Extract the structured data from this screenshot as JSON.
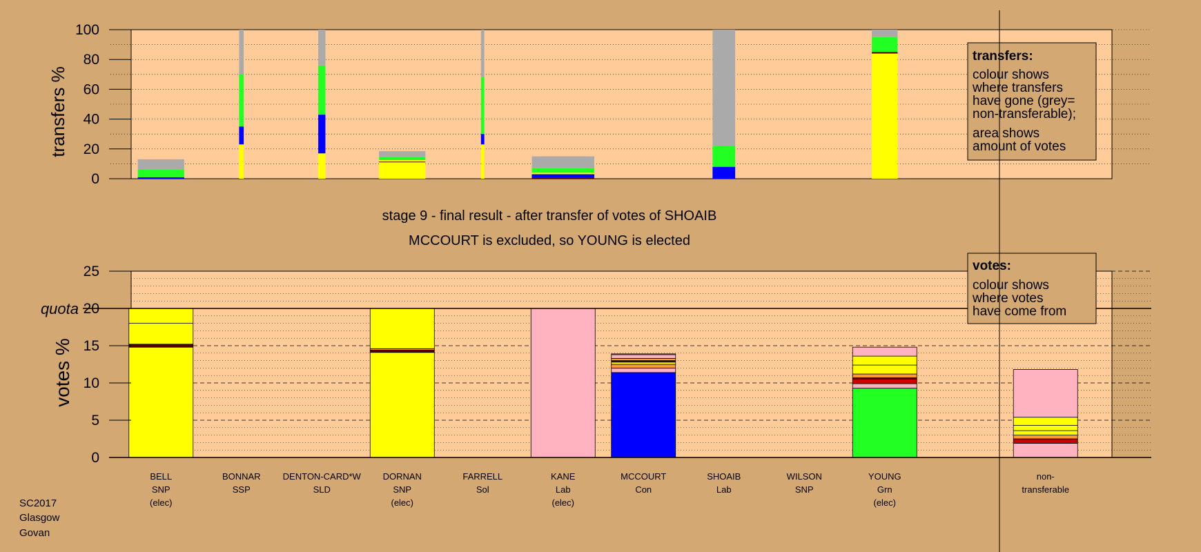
{
  "colors": {
    "background": "#D4A872",
    "plot_panel": "#FFCC99",
    "yellow": "#FFFF00",
    "green": "#22FF22",
    "blue": "#0000FF",
    "grey": "#AAAAAA",
    "pink": "#FFB3C1",
    "red": "#CC0000",
    "orange": "#FF9933",
    "dark": "#550000"
  },
  "transfers_legend": {
    "title": "transfers:",
    "lines_a": [
      "colour shows",
      "where transfers",
      "have gone (grey=",
      "non-transferable);"
    ],
    "lines_b": [
      "area shows",
      "amount of votes"
    ]
  },
  "votes_legend": {
    "title": "votes:",
    "lines": [
      "colour shows",
      "where votes",
      "have come from"
    ]
  },
  "stage_title": "stage 9 - final result - after transfer of votes of SHOAIB",
  "stage_subtitle": "MCCOURT is excluded, so YOUNG is elected",
  "quota_label": "quota",
  "footer": [
    "SC2017",
    "Glasgow",
    "Govan"
  ],
  "chart_data": [
    {
      "type": "bar",
      "title": "",
      "ylabel": "transfers %",
      "ylim": [
        0,
        100
      ],
      "yticks": [
        0,
        20,
        40,
        60,
        80,
        100
      ],
      "grid": "dotted",
      "bars": [
        {
          "candidate": "BELL",
          "width": 0.7,
          "segments": [
            {
              "color": "blue",
              "value": 1
            },
            {
              "color": "green",
              "value": 5
            },
            {
              "color": "grey",
              "value": 7
            }
          ]
        },
        {
          "candidate": "BONNAR",
          "width": 0.05,
          "segments": [
            {
              "color": "yellow",
              "value": 23
            },
            {
              "color": "blue",
              "value": 12
            },
            {
              "color": "green",
              "value": 35
            },
            {
              "color": "grey",
              "value": 30
            }
          ]
        },
        {
          "candidate": "DENTON-CARD*W",
          "width": 0.09,
          "segments": [
            {
              "color": "yellow",
              "value": 17
            },
            {
              "color": "blue",
              "value": 26
            },
            {
              "color": "green",
              "value": 33
            },
            {
              "color": "grey",
              "value": 24
            }
          ]
        },
        {
          "candidate": "DORNAN",
          "width": 0.7,
          "segments": [
            {
              "color": "yellow",
              "value": 11
            },
            {
              "color": "dark",
              "value": 0.5
            },
            {
              "color": "yellow",
              "value": 1
            },
            {
              "color": "green",
              "value": 2
            },
            {
              "color": "grey",
              "value": 4
            }
          ]
        },
        {
          "candidate": "FARRELL",
          "width": 0.03,
          "segments": [
            {
              "color": "yellow",
              "value": 23
            },
            {
              "color": "blue",
              "value": 7
            },
            {
              "color": "green",
              "value": 38
            },
            {
              "color": "grey",
              "value": 32
            }
          ]
        },
        {
          "candidate": "KANE",
          "width": 0.95,
          "segments": [
            {
              "color": "dark",
              "value": 0.5
            },
            {
              "color": "blue",
              "value": 2.5
            },
            {
              "color": "yellow",
              "value": 1
            },
            {
              "color": "green",
              "value": 3
            },
            {
              "color": "grey",
              "value": 8
            }
          ]
        },
        {
          "candidate": "SHOAIB",
          "width": 0.33,
          "segments": [
            {
              "color": "blue",
              "value": 8
            },
            {
              "color": "green",
              "value": 14
            },
            {
              "color": "grey",
              "value": 78
            }
          ]
        },
        {
          "candidate": "YOUNG",
          "width": 0.38,
          "segments": [
            {
              "color": "yellow",
              "value": 84
            },
            {
              "color": "dark",
              "value": 1
            },
            {
              "color": "green",
              "value": 10
            },
            {
              "color": "grey",
              "value": 5
            }
          ]
        }
      ]
    },
    {
      "type": "bar",
      "title": "",
      "ylabel": "votes %",
      "ylim": [
        0,
        25
      ],
      "yticks": [
        0,
        5,
        10,
        15,
        20,
        25
      ],
      "quota": 20,
      "grid": "dashed",
      "categories": [
        {
          "name": "BELL",
          "party": "SNP",
          "note": "(elec)"
        },
        {
          "name": "BONNAR",
          "party": "SSP",
          "note": ""
        },
        {
          "name": "DENTON-CARD*W",
          "party": "SLD",
          "note": ""
        },
        {
          "name": "DORNAN",
          "party": "SNP",
          "note": "(elec)"
        },
        {
          "name": "FARRELL",
          "party": "Sol",
          "note": ""
        },
        {
          "name": "KANE",
          "party": "Lab",
          "note": "(elec)"
        },
        {
          "name": "MCCOURT",
          "party": "Con",
          "note": ""
        },
        {
          "name": "SHOAIB",
          "party": "Lab",
          "note": ""
        },
        {
          "name": "WILSON",
          "party": "SNP",
          "note": ""
        },
        {
          "name": "YOUNG",
          "party": "Grn",
          "note": "(elec)"
        },
        {
          "name": "",
          "party": "",
          "note": ""
        },
        {
          "name": "non-",
          "party": "transferable",
          "note": ""
        }
      ],
      "bars": [
        {
          "index": 0,
          "segments": [
            {
              "color": "yellow",
              "value": 14.8
            },
            {
              "color": "dark",
              "value": 0.4
            },
            {
              "color": "yellow",
              "value": 2.8
            },
            {
              "color": "yellow",
              "value": 2.0
            }
          ]
        },
        {
          "index": 3,
          "segments": [
            {
              "color": "yellow",
              "value": 14.1
            },
            {
              "color": "dark",
              "value": 0.3
            },
            {
              "color": "orange",
              "value": 0.2
            },
            {
              "color": "yellow",
              "value": 5.4
            }
          ]
        },
        {
          "index": 5,
          "segments": [
            {
              "color": "pink",
              "value": 20.0
            }
          ]
        },
        {
          "index": 6,
          "segments": [
            {
              "color": "blue",
              "value": 11.4
            },
            {
              "color": "pink",
              "value": 0.6
            },
            {
              "color": "orange",
              "value": 0.5
            },
            {
              "color": "yellow",
              "value": 0.3
            },
            {
              "color": "dark",
              "value": 0.2
            },
            {
              "color": "orange",
              "value": 0.3
            },
            {
              "color": "pink",
              "value": 0.5
            },
            {
              "color": "pink",
              "value": 0.1
            }
          ]
        },
        {
          "index": 9,
          "segments": [
            {
              "color": "green",
              "value": 9.3
            },
            {
              "color": "pink",
              "value": 0.6
            },
            {
              "color": "red",
              "value": 0.6
            },
            {
              "color": "dark",
              "value": 0.2
            },
            {
              "color": "orange",
              "value": 0.5
            },
            {
              "color": "yellow",
              "value": 1.2
            },
            {
              "color": "yellow",
              "value": 1.2
            },
            {
              "color": "pink",
              "value": 1.2
            }
          ]
        },
        {
          "index": 11,
          "segments": [
            {
              "color": "pink",
              "value": 1.9
            },
            {
              "color": "red",
              "value": 0.6
            },
            {
              "color": "orange",
              "value": 0.5
            },
            {
              "color": "yellow",
              "value": 0.6
            },
            {
              "color": "yellow",
              "value": 0.7
            },
            {
              "color": "yellow",
              "value": 1.1
            },
            {
              "color": "pink",
              "value": 6.4
            }
          ]
        }
      ]
    }
  ]
}
